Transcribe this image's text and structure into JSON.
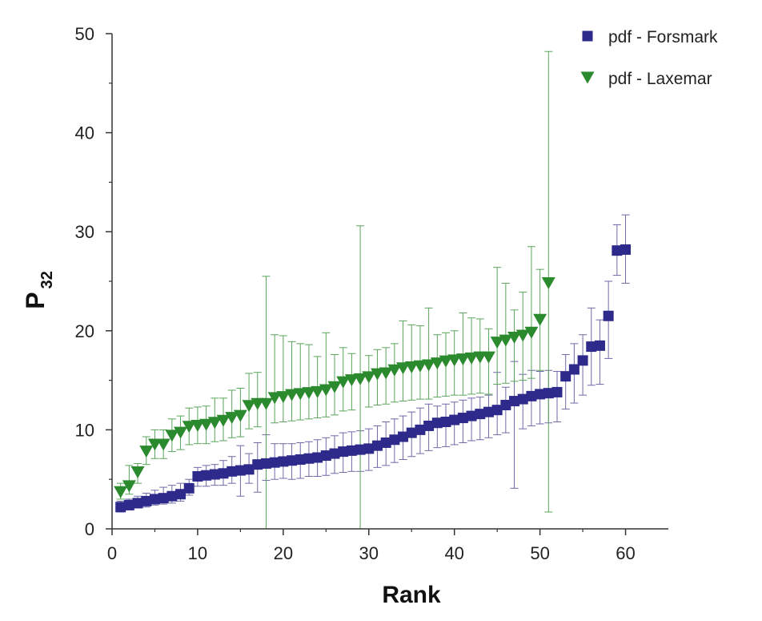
{
  "chart_data": {
    "type": "scatter",
    "xlabel": "Rank",
    "ylabel": {
      "main": "P",
      "subscript": "32"
    },
    "xlim": [
      0,
      65
    ],
    "ylim": [
      0,
      50
    ],
    "xticks": [
      "0",
      "10",
      "20",
      "30",
      "40",
      "50",
      "60"
    ],
    "yticks": [
      "0",
      "10",
      "20",
      "30",
      "40",
      "50"
    ],
    "legend_position": "top-right",
    "grid": false,
    "series": [
      {
        "name": "pdf - Forsmark",
        "marker": "square",
        "color": "#2e2a8c",
        "errorbar_color": "#6e6aa8",
        "x": [
          1,
          2,
          3,
          4,
          5,
          6,
          7,
          8,
          9,
          10,
          11,
          12,
          13,
          14,
          15,
          16,
          17,
          18,
          19,
          20,
          21,
          22,
          23,
          24,
          25,
          26,
          27,
          28,
          29,
          30,
          31,
          32,
          33,
          34,
          35,
          36,
          37,
          38,
          39,
          40,
          41,
          42,
          43,
          44,
          45,
          46,
          47,
          48,
          49,
          50,
          51,
          52,
          53,
          54,
          55,
          56,
          57,
          58,
          59,
          60
        ],
        "y": [
          2.2,
          2.4,
          2.6,
          2.8,
          3.0,
          3.1,
          3.3,
          3.5,
          4.1,
          5.3,
          5.4,
          5.5,
          5.6,
          5.8,
          5.9,
          6.0,
          6.5,
          6.6,
          6.7,
          6.8,
          6.9,
          7.0,
          7.1,
          7.2,
          7.4,
          7.6,
          7.8,
          7.9,
          8.0,
          8.1,
          8.4,
          8.7,
          9.0,
          9.3,
          9.7,
          10.0,
          10.4,
          10.7,
          10.8,
          11.0,
          11.2,
          11.4,
          11.6,
          11.8,
          12.0,
          12.5,
          12.9,
          13.1,
          13.4,
          13.6,
          13.7,
          13.8,
          15.4,
          16.1,
          17.0,
          18.4,
          18.5,
          21.5,
          28.1,
          28.2
        ],
        "err_low": [
          1.7,
          1.9,
          2.1,
          2.2,
          2.4,
          2.5,
          2.6,
          2.8,
          3.4,
          4.3,
          4.3,
          4.4,
          4.4,
          4.6,
          3.3,
          4.6,
          3.7,
          4.9,
          5.0,
          5.1,
          5.0,
          5.1,
          5.3,
          5.3,
          5.4,
          5.6,
          5.7,
          5.8,
          5.8,
          5.9,
          6.2,
          6.4,
          6.7,
          7.0,
          7.3,
          7.6,
          7.9,
          8.2,
          8.3,
          8.5,
          8.7,
          8.9,
          9.0,
          9.2,
          9.5,
          9.7,
          4.1,
          10.1,
          10.4,
          10.6,
          10.7,
          10.8,
          12.1,
          12.7,
          13.5,
          14.5,
          14.6,
          17.2,
          25.6,
          24.8
        ],
        "err_high": [
          2.8,
          3.0,
          3.3,
          3.6,
          3.9,
          4.2,
          4.4,
          4.6,
          5.0,
          6.2,
          6.4,
          6.5,
          6.9,
          7.3,
          8.4,
          7.6,
          8.7,
          9.5,
          8.6,
          8.6,
          8.6,
          8.7,
          8.8,
          9.0,
          9.2,
          9.4,
          9.7,
          9.8,
          9.9,
          10.1,
          10.4,
          10.8,
          11.1,
          11.4,
          11.8,
          12.2,
          12.6,
          12.4,
          12.6,
          12.8,
          13.0,
          13.2,
          13.3,
          13.5,
          15.8,
          14.3,
          16.9,
          15.6,
          16.0,
          15.9,
          16.0,
          15.9,
          17.6,
          18.7,
          19.6,
          22.3,
          21.1,
          25.0,
          30.7,
          31.7
        ]
      },
      {
        "name": "pdf - Laxemar",
        "marker": "triangle-down",
        "color": "#2b8a2e",
        "errorbar_color": "#5aa65b",
        "x": [
          1,
          2,
          3,
          4,
          5,
          6,
          7,
          8,
          9,
          10,
          11,
          12,
          13,
          14,
          15,
          16,
          17,
          18,
          19,
          20,
          21,
          22,
          23,
          24,
          25,
          26,
          27,
          28,
          29,
          30,
          31,
          32,
          33,
          34,
          35,
          36,
          37,
          38,
          39,
          40,
          41,
          42,
          43,
          44,
          45,
          46,
          47,
          48,
          49,
          50,
          51
        ],
        "y": [
          3.7,
          4.3,
          5.7,
          7.8,
          8.5,
          8.5,
          9.4,
          9.7,
          10.3,
          10.4,
          10.5,
          10.7,
          10.9,
          11.2,
          11.4,
          12.4,
          12.6,
          12.6,
          13.2,
          13.3,
          13.5,
          13.6,
          13.7,
          13.8,
          14.0,
          14.3,
          14.8,
          15.0,
          15.1,
          15.3,
          15.6,
          15.7,
          16.0,
          16.2,
          16.3,
          16.4,
          16.5,
          16.7,
          16.9,
          17.0,
          17.1,
          17.2,
          17.3,
          17.3,
          18.8,
          19.0,
          19.3,
          19.5,
          19.8,
          21.1,
          24.8
        ],
        "err_low": [
          3.0,
          3.5,
          4.6,
          6.5,
          7.1,
          7.1,
          7.8,
          8.0,
          8.5,
          8.6,
          8.6,
          8.8,
          8.9,
          9.2,
          9.3,
          10.1,
          10.3,
          0.0,
          10.7,
          10.8,
          10.9,
          11.0,
          11.1,
          11.2,
          11.3,
          11.5,
          11.9,
          12.0,
          0.0,
          12.3,
          12.5,
          12.6,
          12.8,
          12.9,
          13.0,
          13.1,
          13.1,
          13.3,
          13.4,
          13.5,
          13.5,
          13.6,
          13.7,
          13.6,
          14.6,
          14.7,
          14.9,
          15.0,
          15.2,
          16.0,
          1.7
        ],
        "err_high": [
          4.6,
          6.4,
          6.6,
          9.3,
          10.0,
          10.0,
          11.1,
          11.4,
          12.2,
          12.3,
          12.4,
          13.2,
          13.2,
          14.0,
          14.2,
          15.7,
          15.8,
          25.5,
          19.6,
          19.5,
          18.9,
          18.7,
          18.6,
          17.4,
          19.8,
          17.6,
          18.3,
          17.7,
          30.6,
          17.5,
          18.1,
          18.3,
          18.7,
          21.0,
          20.6,
          20.5,
          22.3,
          19.6,
          19.8,
          20.0,
          21.8,
          21.3,
          21.2,
          20.2,
          26.4,
          24.8,
          22.1,
          23.9,
          28.5,
          26.2,
          48.2
        ]
      }
    ]
  }
}
